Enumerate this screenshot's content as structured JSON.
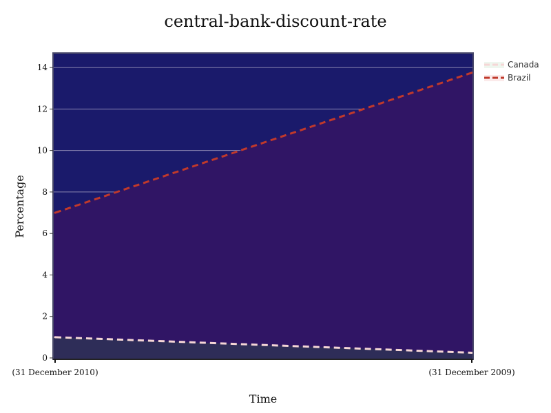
{
  "chart_data": {
    "type": "area",
    "title": "central-bank-discount-rate",
    "xlabel": "Time",
    "ylabel": "Percentage",
    "x": [
      "(31 December 2010)",
      "(31 December 2009)"
    ],
    "ylim": [
      0,
      14.7
    ],
    "yticks": [
      0,
      2,
      4,
      6,
      8,
      10,
      12,
      14
    ],
    "grid": true,
    "legend_position": "top-right",
    "plot_background": "#1a1a6b",
    "series": [
      {
        "name": "Canada",
        "values": [
          1.0,
          0.25
        ],
        "color": "#f5d6d6",
        "fill": "#2e2d58",
        "dash": true
      },
      {
        "name": "Brazil",
        "values": [
          7.0,
          13.75
        ],
        "color": "#c0392b",
        "fill": "#301565",
        "dash": true
      }
    ]
  }
}
